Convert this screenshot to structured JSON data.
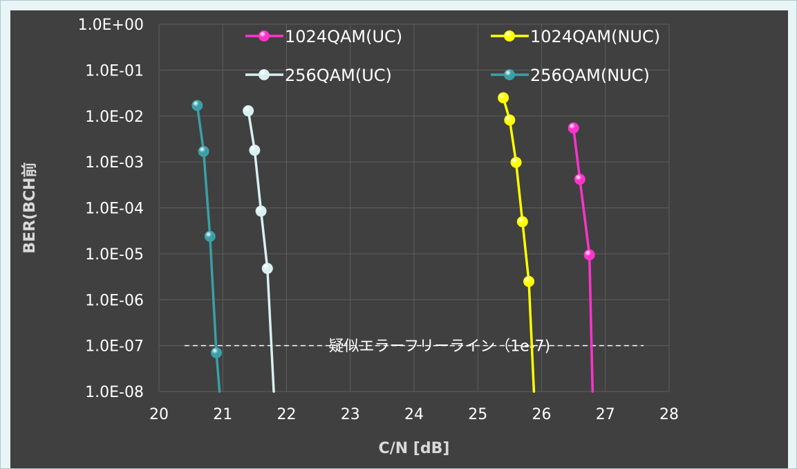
{
  "chart_data": {
    "type": "line",
    "xlabel": "C/N [dB]",
    "ylabel": "BER(BCH前",
    "x_scale": "linear",
    "y_scale": "log",
    "xlim": [
      20,
      28
    ],
    "ylim": [
      1e-08,
      1
    ],
    "x_ticks": [
      "20",
      "21",
      "22",
      "23",
      "24",
      "25",
      "26",
      "27",
      "28"
    ],
    "y_ticks": [
      "1.0E+00",
      "1.0E-01",
      "1.0E-02",
      "1.0E-03",
      "1.0E-04",
      "1.0E-05",
      "1.0E-06",
      "1.0E-07",
      "1.0E-08"
    ],
    "grid": true,
    "legend_position": "top-right",
    "series": [
      {
        "name": "1024QAM(UC)",
        "color": "#ff33cc",
        "x": [
          26.5,
          26.6,
          26.75
        ],
        "y": [
          0.0055,
          0.00042,
          9.5e-06
        ],
        "line_end": [
          26.8,
          1e-08
        ]
      },
      {
        "name": "1024QAM(NUC)",
        "color": "#ffff00",
        "x": [
          25.4,
          25.5,
          25.6,
          25.7,
          25.8
        ],
        "y": [
          0.025,
          0.0082,
          0.00098,
          5e-05,
          2.5e-06
        ],
        "line_end": [
          25.88,
          1e-08
        ]
      },
      {
        "name": "256QAM(UC)",
        "color": "#d8f0f2",
        "x": [
          21.4,
          21.5,
          21.6,
          21.7
        ],
        "y": [
          0.013,
          0.0018,
          8.5e-05,
          4.8e-06
        ],
        "line_end": [
          21.8,
          1e-08
        ]
      },
      {
        "name": "256QAM(NUC)",
        "color": "#3aa0a8",
        "x": [
          20.6,
          20.7,
          20.8,
          20.9
        ],
        "y": [
          0.017,
          0.0017,
          2.4e-05,
          7e-08
        ],
        "line_end": [
          20.95,
          1e-08
        ]
      }
    ],
    "annotations": [
      {
        "text": "疑似エラーフリーライン（1e-7)",
        "y": 1e-07,
        "x_range": [
          20.4,
          27.6
        ],
        "style": "dashed"
      }
    ]
  }
}
